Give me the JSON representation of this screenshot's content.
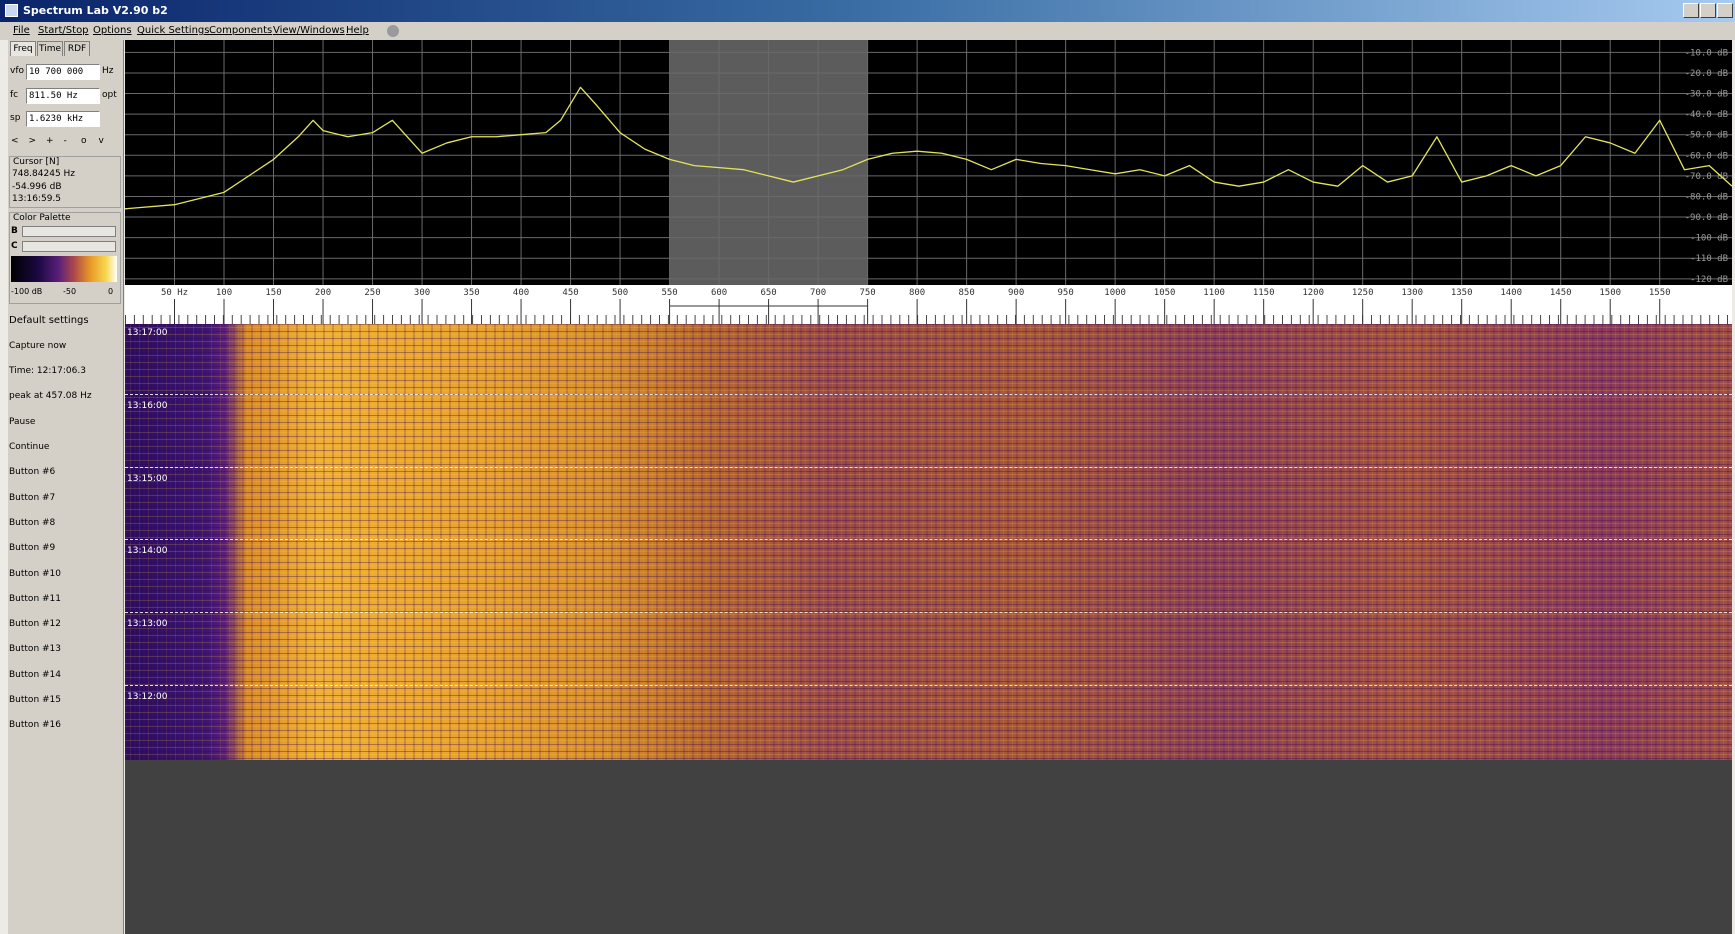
{
  "window": {
    "title": "Spectrum Lab V2.90 b2"
  },
  "menu": [
    "File",
    "Start/Stop",
    "Options",
    "Quick Settings",
    "Components",
    "View/Windows",
    "Help"
  ],
  "tabs": [
    "Freq",
    "Time",
    "RDF"
  ],
  "fields": [
    {
      "label": "vfo",
      "value": "10 700 000",
      "unit": "Hz"
    },
    {
      "label": "fc",
      "value": "811.50 Hz",
      "unit": "opt"
    },
    {
      "label": "sp",
      "value": "1.6230 kHz"
    }
  ],
  "nav_buttons": [
    "<",
    ">",
    "+",
    "-",
    "o",
    "v"
  ],
  "cursor": {
    "title": "Cursor [N]",
    "lines": [
      "748.84245 Hz",
      "-54.996 dB",
      "13:16:59.5"
    ]
  },
  "color_palette": {
    "title": "Color Palette",
    "sliders": [
      "B",
      "C"
    ],
    "scale": [
      "-100 dB",
      "-50",
      "0"
    ]
  },
  "buttons": [
    "Default settings",
    "Capture now",
    "Time: 12:17:06.3",
    "peak at 457.08 Hz",
    "Pause",
    "Continue",
    "Button #6",
    "Button #7",
    "Button #8",
    "Button #9",
    "Button #10",
    "Button #11",
    "Button #12",
    "Button #13",
    "Button #14",
    "Button #15",
    "Button #16"
  ],
  "chart_data": {
    "type": "line",
    "color": "#e4e45a",
    "grid": true,
    "x": [
      0,
      50,
      100,
      125,
      150,
      175,
      190,
      200,
      225,
      250,
      270,
      300,
      325,
      350,
      375,
      400,
      425,
      440,
      460,
      475,
      500,
      525,
      550,
      575,
      600,
      625,
      650,
      675,
      700,
      725,
      750,
      775,
      800,
      825,
      850,
      875,
      900,
      925,
      950,
      975,
      1000,
      1025,
      1050,
      1075,
      1100,
      1125,
      1150,
      1175,
      1200,
      1225,
      1250,
      1275,
      1300,
      1325,
      1350,
      1375,
      1400,
      1425,
      1450,
      1475,
      1500,
      1525,
      1550,
      1575,
      1600,
      1623
    ],
    "values": [
      -86,
      -84,
      -78,
      -70,
      -62,
      -51,
      -43,
      -48,
      -51,
      -49,
      -43,
      -59,
      -54,
      -51,
      -51,
      -50,
      -49,
      -43,
      -27,
      -35,
      -49,
      -57,
      -62,
      -65,
      -66,
      -67,
      -70,
      -73,
      -70,
      -67,
      -62,
      -59,
      -58,
      -59,
      -62,
      -67,
      -62,
      -64,
      -65,
      -67,
      -69,
      -67,
      -70,
      -65,
      -73,
      -75,
      -73,
      -67,
      -73,
      -75,
      -65,
      -73,
      -70,
      -51,
      -73,
      -70,
      -65,
      -70,
      -65,
      -51,
      -54,
      -59,
      -43,
      -67,
      -65,
      -75
    ],
    "xlim": [
      0,
      1623
    ],
    "ylim": [
      -123,
      -4
    ],
    "xticks": [
      {
        "value": 50,
        "label": "50 Hz"
      },
      100,
      150,
      200,
      250,
      300,
      350,
      400,
      450,
      500,
      550,
      600,
      650,
      700,
      750,
      800,
      850,
      900,
      950,
      1000,
      1050,
      1100,
      1150,
      1200,
      1250,
      1300,
      1350,
      1400,
      1450,
      1500,
      1550
    ],
    "yticks": [
      {
        "value": -10,
        "label": "-10.0 dB"
      },
      {
        "value": -20,
        "label": "-20.0 dB"
      },
      {
        "value": -30,
        "label": "-30.0 dB"
      },
      {
        "value": -40,
        "label": "-40.0 dB"
      },
      {
        "value": -50,
        "label": "-50.0 dB"
      },
      {
        "value": -60,
        "label": "-60.0 dB"
      },
      {
        "value": -70,
        "label": "-70.0 dB"
      },
      {
        "value": -80,
        "label": "-80.0 dB"
      },
      {
        "value": -90,
        "label": "-90.0 dB"
      },
      {
        "value": -100,
        "label": "-100 dB"
      },
      {
        "value": -110,
        "label": "-110 dB"
      },
      {
        "value": -120,
        "label": "-120 dB"
      }
    ],
    "selection": [
      550,
      750
    ]
  },
  "waterfall": {
    "time_labels": [
      "13:17:00",
      "13:16:00",
      "13:15:00",
      "13:14:00",
      "13:13:00",
      "13:12:00"
    ]
  }
}
